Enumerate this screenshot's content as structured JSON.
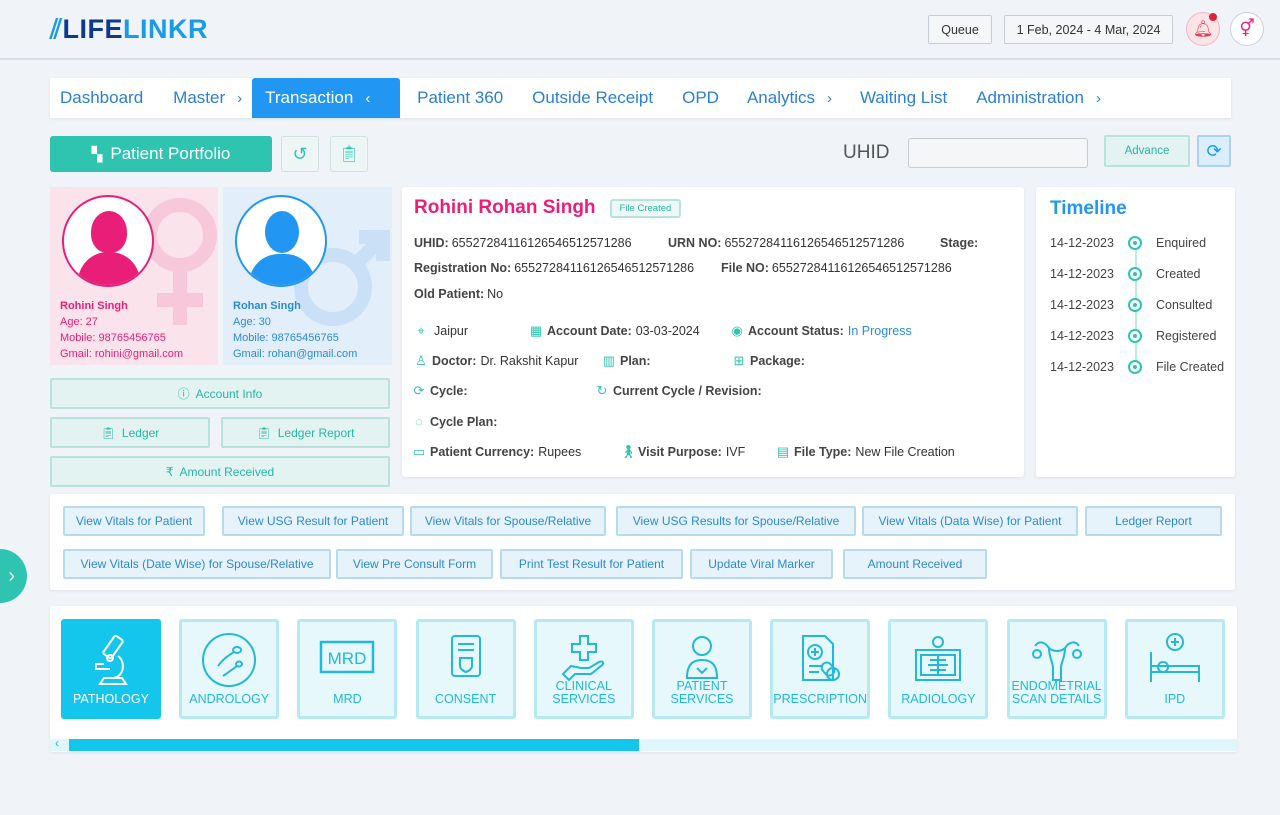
{
  "header": {
    "logo_part1": "LIFE",
    "logo_part2": "LINKR",
    "queue_label": "Queue",
    "date_range": "1 Feb, 2024 - 4 Mar, 2024",
    "notification_icon": "bell-icon",
    "gender_icon": "gender-icon"
  },
  "nav": {
    "items": [
      {
        "label": "Dashboard"
      },
      {
        "label": "Master",
        "chevron": "›"
      },
      {
        "label": "Transaction",
        "chevron": "‹",
        "active": true
      },
      {
        "label": "Patient 360"
      },
      {
        "label": "Outside Receipt"
      },
      {
        "label": "OPD"
      },
      {
        "label": "Analytics",
        "chevron": "›"
      },
      {
        "label": "Waiting List"
      },
      {
        "label": "Administration",
        "chevron": "›"
      }
    ]
  },
  "toolbar": {
    "portfolio_label": "Patient Portfolio",
    "uhid_label": "UHID",
    "uhid_value": "",
    "advance_label": "Advance"
  },
  "female": {
    "name": "Rohini Singh",
    "age": "Age: 27",
    "mobile": "Mobile: 98765456765",
    "email": "Gmail: rohini@gmail.com"
  },
  "male": {
    "name": "Rohan Singh",
    "age": "Age: 30",
    "mobile": "Mobile: 98765456765",
    "email": "Gmail: rohan@gmail.com"
  },
  "side_buttons": {
    "account_info": "Account Info",
    "ledger": "Ledger",
    "ledger_report": "Ledger Report",
    "amount_received": "Amount Received"
  },
  "patient": {
    "name": "Rohini Rohan Singh",
    "badge": "File Created",
    "uhid_label": "UHID:",
    "uhid": "6552728411612654651257128​6",
    "urn_label": "URN NO:",
    "urn": "65527284116126546512571286",
    "stage_label": "Stage:",
    "reg_label": "Registration No:",
    "reg": "65527284116126546512571286",
    "file_label": "File NO:",
    "file": "65527284116126546512571286",
    "old_label": "Old Patient:",
    "old": "No",
    "city": "Jaipur",
    "acc_date_label": "Account Date:",
    "acc_date": "03-03-2024",
    "acc_status_label": "Account Status:",
    "acc_status": "In Progress",
    "doctor_label": "Doctor:",
    "doctor": "Dr. Rakshit Kapur",
    "plan_label": "Plan:",
    "package_label": "Package:",
    "cycle_label": "Cycle:",
    "current_cycle_label": "Current Cycle / Revision:",
    "cycle_plan_label": "Cycle Plan:",
    "currency_label": "Patient Currency:",
    "currency": "Rupees",
    "visit_label": "Visit Purpose:",
    "visit": "IVF",
    "filetype_label": "File Type:",
    "filetype": "New File Creation"
  },
  "timeline": {
    "title": "Timeline",
    "items": [
      {
        "date": "14-12-2023",
        "label": "Enquired"
      },
      {
        "date": "14-12-2023",
        "label": "Created"
      },
      {
        "date": "14-12-2023",
        "label": "Consulted"
      },
      {
        "date": "14-12-2023",
        "label": "Registered"
      },
      {
        "date": "14-12-2023",
        "label": "File Created"
      }
    ]
  },
  "actions": [
    "View Vitals for Patient",
    "View USG Result for Patient",
    "View Vitals for Spouse/Relative",
    "View USG Results for Spouse/Relative",
    "View Vitals (Data Wise) for Patient",
    "Ledger Report",
    "View Vitals (Date Wise) for Spouse/Relative",
    "View Pre Consult Form",
    "Print Test Result for Patient",
    "Update Viral Marker",
    "Amount Received"
  ],
  "modules": [
    "PATHOLOGY",
    "ANDROLOGY",
    "MRD",
    "CONSENT",
    "CLINICAL SERVICES",
    "PATIENT SERVICES",
    "PRESCRIPTION",
    "RADIOLOGY",
    "ENDOMETRIAL SCAN DETAILS",
    "IPD"
  ],
  "modules_active": "PATHOLOGY",
  "mrd_icon_text": "MRD",
  "scroll_position_percent": 48,
  "colors": {
    "teal": "#2ec4b0",
    "blue": "#2196f3",
    "pink": "#e91e78",
    "cyan": "#14c6ec"
  }
}
